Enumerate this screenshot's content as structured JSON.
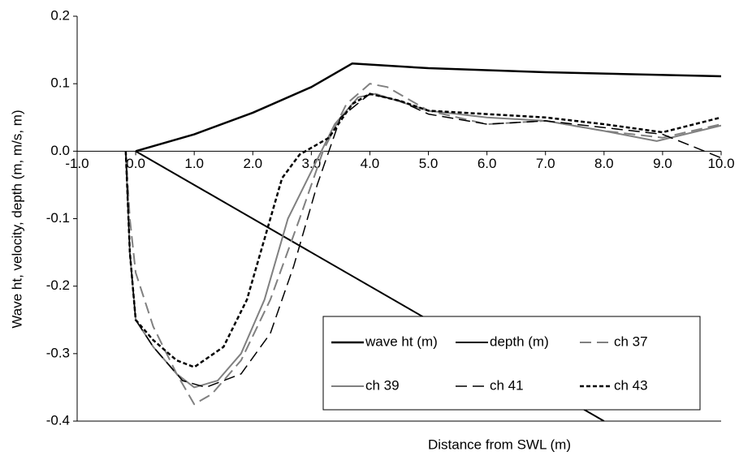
{
  "chart_data": {
    "type": "line",
    "xlabel": "Distance from SWL (m)",
    "ylabel": "Wave ht, velocity, depth (m, m/s, m)",
    "xlim": [
      -1,
      10
    ],
    "xticks": [
      {
        "value": -1,
        "label": "-1.0"
      },
      {
        "value": 0,
        "label": "0.0"
      },
      {
        "value": 1,
        "label": "1.0"
      },
      {
        "value": 2,
        "label": "2.0"
      },
      {
        "value": 3,
        "label": "3.0"
      },
      {
        "value": 4,
        "label": "4.0"
      },
      {
        "value": 5,
        "label": "5.0"
      },
      {
        "value": 6,
        "label": "6.0"
      },
      {
        "value": 7,
        "label": "7.0"
      },
      {
        "value": 8,
        "label": "8.0"
      },
      {
        "value": 9,
        "label": "9.0"
      },
      {
        "value": 10,
        "label": "10.0"
      }
    ],
    "ylim": [
      -0.4,
      0.2
    ],
    "yticks": [
      -0.4,
      -0.3,
      -0.2,
      -0.1,
      {
        "value": 0,
        "label": "0.0"
      },
      0.1,
      0.2
    ],
    "legend": "lower right",
    "series": [
      {
        "name": "wave ht (m)",
        "color": "#000000",
        "dash": "solid",
        "width": 2.5,
        "x": [
          0,
          1,
          2,
          3,
          3.7,
          5,
          7,
          10
        ],
        "values": [
          0,
          0.025,
          0.057,
          0.095,
          0.13,
          0.123,
          0.117,
          0.111
        ]
      },
      {
        "name": "depth (m)",
        "color": "#000000",
        "dash": "solid",
        "width": 2,
        "x": [
          0,
          8
        ],
        "values": [
          0,
          -0.4
        ]
      },
      {
        "name": "ch 37",
        "color": "#808080",
        "dash": "long",
        "width": 2,
        "x": [
          -0.17,
          -0.1,
          0,
          0.3,
          0.7,
          1.0,
          1.3,
          1.8,
          2.3,
          2.8,
          3.2,
          3.6,
          4.0,
          4.3,
          5.0,
          6.0,
          7.0,
          8.0,
          9.0,
          10.0
        ],
        "values": [
          0,
          -0.1,
          -0.18,
          -0.26,
          -0.33,
          -0.375,
          -0.36,
          -0.31,
          -0.22,
          -0.1,
          0,
          0.07,
          0.1,
          0.095,
          0.06,
          0.04,
          0.045,
          0.03,
          0.02,
          0.04
        ]
      },
      {
        "name": "ch 39",
        "color": "#808080",
        "dash": "solid",
        "width": 2,
        "x": [
          -0.17,
          -0.1,
          0,
          0.3,
          0.7,
          1.0,
          1.4,
          1.8,
          2.2,
          2.6,
          3.0,
          3.4,
          3.8,
          4.1,
          5.0,
          6.0,
          7.0,
          8.0,
          8.9,
          10.0
        ],
        "values": [
          0,
          -0.15,
          -0.25,
          -0.29,
          -0.33,
          -0.35,
          -0.34,
          -0.3,
          -0.22,
          -0.1,
          -0.03,
          0.04,
          0.08,
          0.085,
          0.06,
          0.05,
          0.045,
          0.03,
          0.015,
          0.038
        ]
      },
      {
        "name": "ch 41",
        "color": "#000000",
        "dash": "long",
        "width": 1.5,
        "x": [
          -0.17,
          -0.1,
          0,
          0.3,
          0.8,
          1.2,
          1.8,
          2.3,
          2.7,
          3.1,
          3.5,
          4.0,
          4.5,
          5.0,
          6.0,
          7.0,
          8.0,
          9.0,
          10.0
        ],
        "values": [
          0,
          -0.15,
          -0.25,
          -0.29,
          -0.34,
          -0.35,
          -0.33,
          -0.27,
          -0.17,
          -0.05,
          0.05,
          0.085,
          0.075,
          0.055,
          0.04,
          0.045,
          0.035,
          0.025,
          -0.01
        ]
      },
      {
        "name": "ch 43",
        "color": "#000000",
        "dash": "short",
        "width": 2.5,
        "x": [
          -0.17,
          -0.1,
          0,
          0.3,
          0.7,
          1.0,
          1.5,
          1.9,
          2.2,
          2.5,
          2.8,
          3.3,
          3.7,
          4.0,
          4.5,
          5.0,
          6.0,
          7.0,
          8.0,
          9.0,
          10.0
        ],
        "values": [
          0,
          -0.15,
          -0.25,
          -0.28,
          -0.31,
          -0.32,
          -0.29,
          -0.22,
          -0.13,
          -0.04,
          -0.005,
          0.02,
          0.07,
          0.085,
          0.075,
          0.06,
          0.055,
          0.05,
          0.04,
          0.028,
          0.05
        ]
      }
    ]
  }
}
